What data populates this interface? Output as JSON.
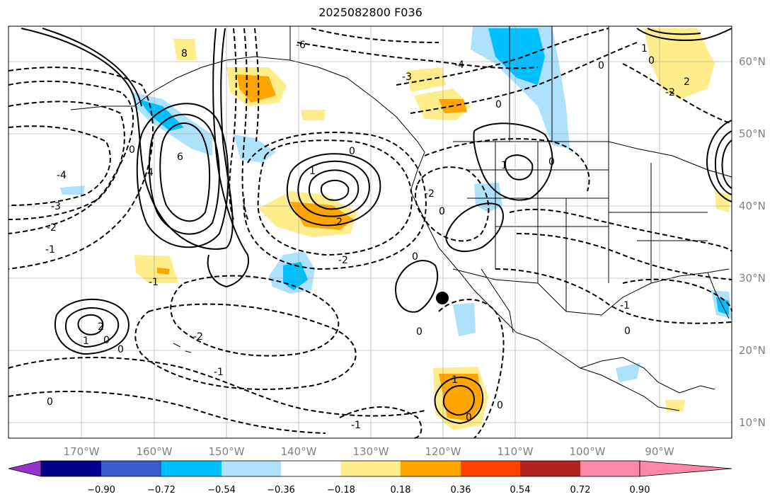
{
  "title": "2025082800 F036",
  "map": {
    "lon_labels": [
      "170°W",
      "160°W",
      "150°W",
      "140°W",
      "130°W",
      "120°W",
      "110°W",
      "100°W",
      "90°W"
    ],
    "lat_labels": [
      "60°N",
      "50°N",
      "40°N",
      "30°N",
      "20°N",
      "10°N"
    ],
    "grid": true,
    "marker": {
      "lon": -120,
      "lat": 27,
      "shape": "filled-circle"
    }
  },
  "contour_labels": [
    "-6",
    "-4",
    "-3",
    "-2",
    "-1",
    "0",
    "1",
    "2",
    "4",
    "6",
    "8"
  ],
  "colorbar": {
    "ticks": [
      "−0.90",
      "−0.72",
      "−0.54",
      "−0.36",
      "−0.18",
      "0.18",
      "0.36",
      "0.54",
      "0.72",
      "0.90"
    ],
    "colors": [
      "#9932cc",
      "#00008b",
      "#3a5bcd",
      "#00bfff",
      "#aee2fc",
      "#ffffff",
      "#ffec8b",
      "#ffa500",
      "#ff4000",
      "#b22222",
      "#ff88aa"
    ]
  }
}
